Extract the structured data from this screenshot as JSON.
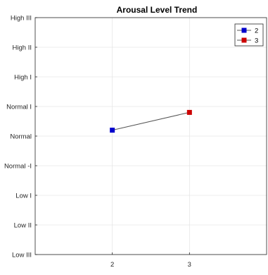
{
  "chart_data": {
    "type": "line",
    "title": "Arousal Level Trend",
    "xlabel": "",
    "ylabel": "",
    "x_ticks": [
      2,
      3
    ],
    "xlim": [
      1,
      4
    ],
    "y_tick_labels": [
      "Low III",
      "Low II",
      "Low I",
      "Normal -I",
      "Normal",
      "Normal I",
      "High I",
      "High II",
      "High III"
    ],
    "ylim": [
      -4,
      4
    ],
    "grid": true,
    "legend_position": "top-right",
    "points": [
      {
        "name": "2",
        "x": 2,
        "y": 0.2,
        "color": "#0000cc"
      },
      {
        "name": "3",
        "x": 3,
        "y": 0.8,
        "color": "#cc0000"
      }
    ],
    "line_color": "#555555"
  }
}
